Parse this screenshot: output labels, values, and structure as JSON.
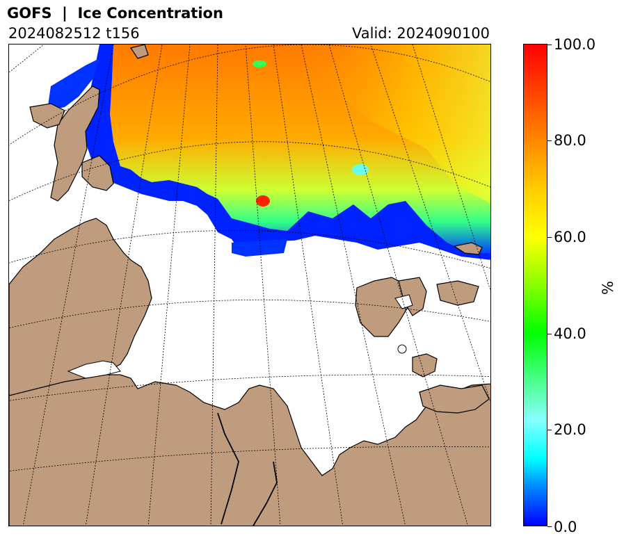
{
  "header": {
    "title": "GOFS  |  Ice Concentration",
    "run": "2024082512 t156",
    "valid": "Valid: 2024090100"
  },
  "map": {
    "colors": {
      "land": "#c09c7e",
      "ocean": "#ffffff",
      "coast": "#000000",
      "graticule": "#000000"
    },
    "regions": [
      "ice-pack",
      "land",
      "islands",
      "graticule"
    ]
  },
  "colorbar": {
    "label": "%",
    "ticks": [
      "0.0",
      "20.0",
      "40.0",
      "60.0",
      "80.0",
      "100.0"
    ],
    "range": [
      0,
      100
    ],
    "colormap": [
      "#0000ff",
      "#00ffff",
      "#00ff00",
      "#ffff00",
      "#ff8800",
      "#ff0000"
    ]
  }
}
